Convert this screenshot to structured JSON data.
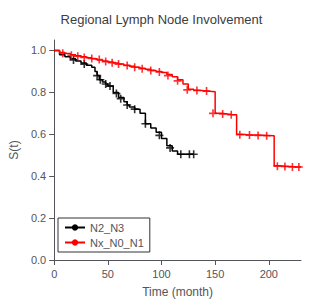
{
  "chart_data": {
    "type": "line",
    "title": "Regional Lymph Node Involvement",
    "xlabel": "Time (month)",
    "ylabel": "S(t)",
    "xlim": [
      0,
      230
    ],
    "ylim": [
      0.0,
      1.05
    ],
    "xticks": [
      0,
      50,
      100,
      150,
      200
    ],
    "yticks": [
      {
        "value": 0.0,
        "label": "0.0"
      },
      0.2,
      0.4,
      0.6,
      0.8,
      {
        "value": 1.0,
        "label": "1.0"
      }
    ],
    "grid": false,
    "legend": "lower left",
    "series": [
      {
        "name": "N2_N3",
        "type": "step",
        "line_style": "solid",
        "color": "black",
        "x": [
          0,
          5,
          10,
          15,
          20,
          25,
          30,
          35,
          38,
          40,
          42,
          45,
          48,
          50,
          55,
          60,
          65,
          68,
          70,
          75,
          80,
          85,
          90,
          95,
          100,
          105,
          110,
          115,
          120,
          125,
          130
        ],
        "values": [
          1.0,
          0.98,
          0.97,
          0.96,
          0.95,
          0.94,
          0.93,
          0.92,
          0.9,
          0.88,
          0.86,
          0.85,
          0.84,
          0.83,
          0.8,
          0.775,
          0.755,
          0.74,
          0.73,
          0.72,
          0.7,
          0.65,
          0.63,
          0.61,
          0.58,
          0.545,
          0.52,
          0.505,
          0.505,
          0.505,
          0.505
        ]
      },
      {
        "type": "scatter",
        "marker": "+",
        "color": "black",
        "x": [
          18,
          28,
          40,
          43,
          48,
          52,
          58,
          62,
          68,
          75,
          85,
          98,
          108,
          118,
          126,
          130
        ],
        "values": [
          0.955,
          0.935,
          0.88,
          0.86,
          0.84,
          0.83,
          0.795,
          0.77,
          0.74,
          0.72,
          0.65,
          0.595,
          0.535,
          0.505,
          0.505,
          0.505
        ]
      },
      {
        "name": "Nx_N0_N1",
        "type": "step",
        "line_style": "solid",
        "color": "red",
        "x": [
          0,
          5,
          10,
          15,
          20,
          25,
          30,
          35,
          40,
          45,
          50,
          55,
          60,
          65,
          70,
          75,
          80,
          85,
          90,
          95,
          100,
          105,
          110,
          115,
          120,
          125,
          130,
          135,
          140,
          145,
          150,
          155,
          160,
          165,
          170,
          175,
          180,
          185,
          190,
          195,
          200,
          205,
          210,
          215,
          220,
          225,
          230
        ],
        "values": [
          1.0,
          0.99,
          0.985,
          0.98,
          0.975,
          0.97,
          0.965,
          0.96,
          0.955,
          0.95,
          0.945,
          0.94,
          0.935,
          0.93,
          0.925,
          0.92,
          0.915,
          0.91,
          0.905,
          0.9,
          0.895,
          0.885,
          0.875,
          0.86,
          0.84,
          0.815,
          0.81,
          0.808,
          0.805,
          0.803,
          0.7,
          0.698,
          0.695,
          0.693,
          0.6,
          0.598,
          0.597,
          0.596,
          0.595,
          0.594,
          0.593,
          0.45,
          0.448,
          0.446,
          0.444,
          0.444,
          0.444
        ]
      },
      {
        "type": "scatter",
        "marker": "+",
        "color": "red",
        "x": [
          8,
          16,
          22,
          28,
          35,
          42,
          48,
          54,
          60,
          68,
          75,
          82,
          90,
          98,
          106,
          115,
          124,
          133,
          142,
          148,
          157,
          165,
          173,
          182,
          190,
          198,
          208,
          215,
          222,
          228
        ],
        "values": [
          0.987,
          0.977,
          0.972,
          0.967,
          0.962,
          0.957,
          0.947,
          0.942,
          0.935,
          0.928,
          0.92,
          0.913,
          0.905,
          0.897,
          0.88,
          0.855,
          0.812,
          0.809,
          0.806,
          0.7,
          0.697,
          0.693,
          0.598,
          0.596,
          0.594,
          0.593,
          0.448,
          0.446,
          0.444,
          0.444
        ]
      }
    ]
  }
}
